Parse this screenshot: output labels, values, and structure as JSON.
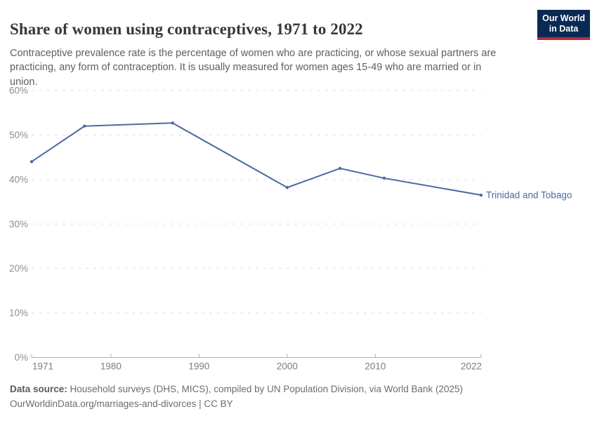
{
  "header": {
    "title": "Share of women using contraceptives, 1971 to 2022",
    "subtitle": "Contraceptive prevalence rate is the percentage of women who are practicing, or whose sexual partners are practicing, any form of contraception. It is usually measured for women ages 15-49 who are married or in union."
  },
  "logo": {
    "line1": "Our World",
    "line2": "in Data"
  },
  "chart_data": {
    "type": "line",
    "title": "Share of women using contraceptives, 1971 to 2022",
    "series": [
      {
        "name": "Trinidad and Tobago",
        "color": "#4a6ba3",
        "x": [
          1971,
          1977,
          1987,
          2000,
          2006,
          2011,
          2022
        ],
        "values": [
          44,
          52,
          52.7,
          38.2,
          42.5,
          40.3,
          36.5
        ]
      }
    ],
    "xlabel": "",
    "ylabel": "",
    "xlim": [
      1971,
      2022
    ],
    "ylim": [
      0,
      60
    ],
    "x_ticks": [
      1971,
      1980,
      1990,
      2000,
      2010,
      2022
    ],
    "y_ticks": [
      0,
      10,
      20,
      30,
      40,
      50,
      60
    ],
    "y_tick_format": "{}%",
    "grid": "horizontal-dashed",
    "legend_position": "end-of-line"
  },
  "footer": {
    "datasource_label": "Data source:",
    "datasource_text": " Household surveys (DHS, MICS), compiled by UN Population Division, via World Bank (2025)",
    "link_line": "OurWorldinData.org/marriages-and-divorces | CC BY"
  },
  "colors": {
    "line": "#4a6ba3",
    "grid": "#e0e0e0",
    "axis": "#b0b0b0",
    "y_tick_label": "#8f8f8f",
    "x_tick_label": "#7d7d7d",
    "logo_bg": "#0a2a54",
    "logo_stripe": "#c0273a"
  }
}
